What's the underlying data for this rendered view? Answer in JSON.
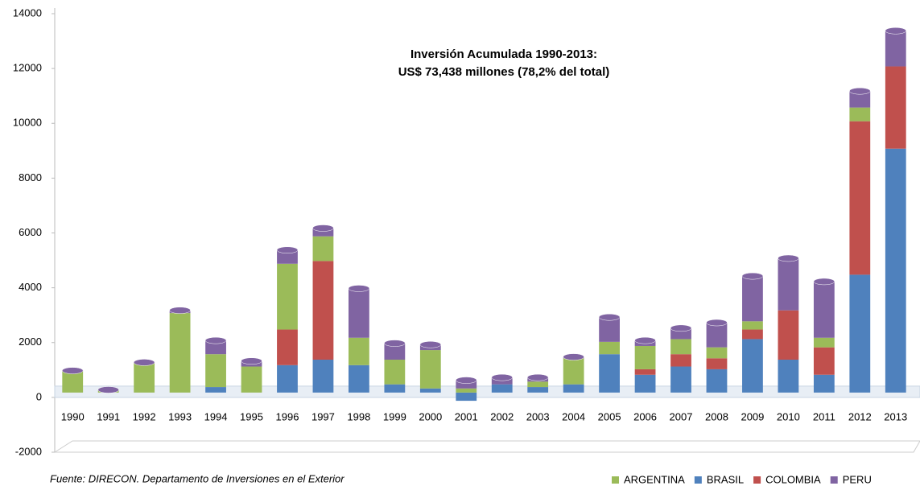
{
  "chart_data": {
    "type": "bar",
    "stacked": true,
    "annotation": [
      "Inversión Acumulada 1990-2013:",
      "US$ 73,438 millones (78,2% del total)"
    ],
    "source": "Fuente: DIRECON. Departamento de Inversiones en el Exterior",
    "categories": [
      "1990",
      "1991",
      "1992",
      "1993",
      "1994",
      "1995",
      "1996",
      "1997",
      "1998",
      "1999",
      "2000",
      "2001",
      "2002",
      "2003",
      "2004",
      "2005",
      "2006",
      "2007",
      "2008",
      "2009",
      "2010",
      "2011",
      "2012",
      "2013"
    ],
    "series": [
      {
        "name": "ARGENTINA",
        "color": "#9bbb59",
        "values": [
          800,
          100,
          1100,
          2900,
          1200,
          950,
          2400,
          900,
          1000,
          900,
          1400,
          150,
          0,
          200,
          950,
          450,
          850,
          550,
          400,
          300,
          0,
          350,
          500,
          0
        ]
      },
      {
        "name": "BRASIL",
        "color": "#4f81bd",
        "values": [
          0,
          0,
          0,
          0,
          200,
          0,
          1000,
          1200,
          1000,
          300,
          150,
          -300,
          300,
          200,
          300,
          1400,
          650,
          950,
          850,
          1950,
          1200,
          650,
          4300,
          8900
        ]
      },
      {
        "name": "COLOMBIA",
        "color": "#c0504d",
        "values": [
          0,
          0,
          0,
          0,
          0,
          0,
          1300,
          3600,
          0,
          0,
          0,
          0,
          0,
          0,
          0,
          0,
          200,
          450,
          400,
          350,
          1800,
          1000,
          5600,
          3000
        ]
      },
      {
        "name": "PERU",
        "color": "#8064a2",
        "values": [
          0,
          0,
          0,
          100,
          500,
          200,
          500,
          300,
          1800,
          600,
          200,
          300,
          250,
          150,
          50,
          900,
          200,
          400,
          900,
          1650,
          1900,
          2050,
          600,
          1300
        ]
      }
    ],
    "ylim": [
      -2000,
      14000
    ],
    "yticks": [
      -2000,
      0,
      2000,
      4000,
      6000,
      8000,
      10000,
      12000,
      14000
    ],
    "legend": "bottom-right"
  }
}
